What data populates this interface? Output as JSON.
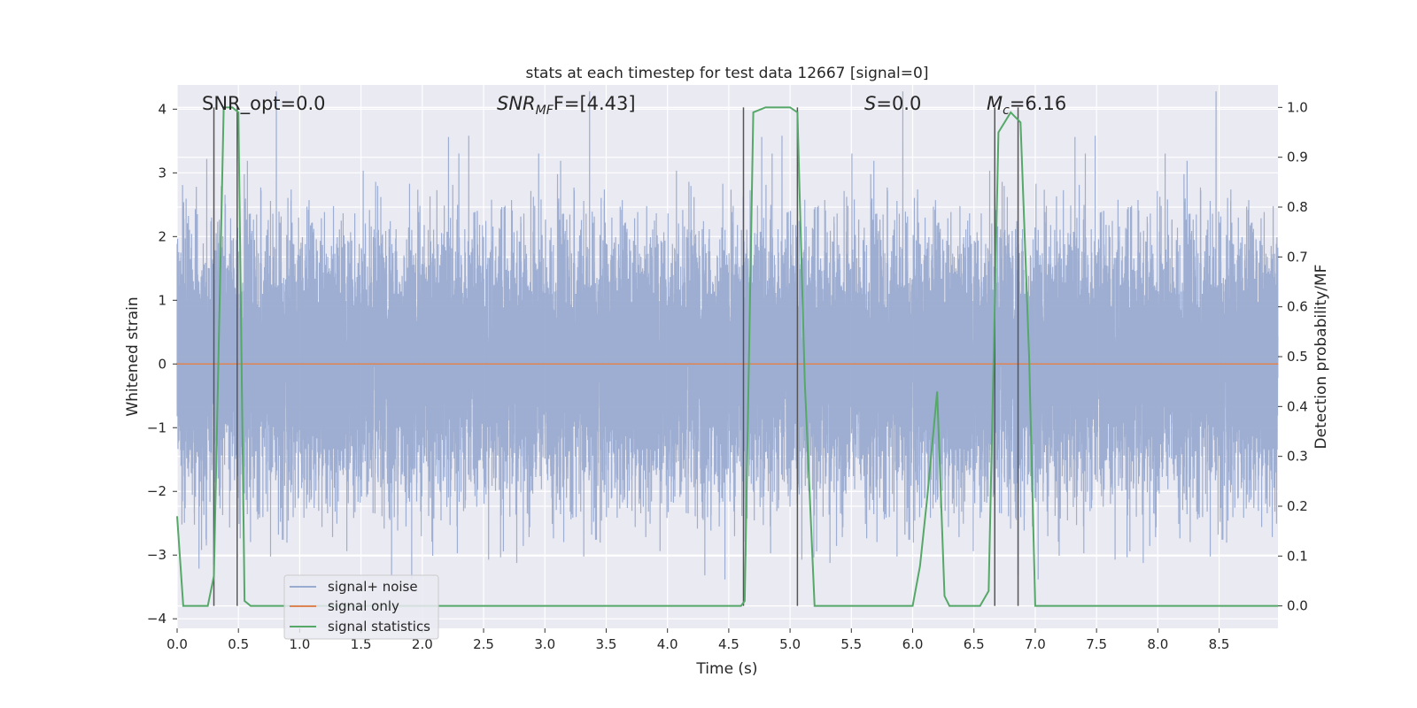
{
  "chart_data": {
    "type": "line",
    "title": "stats at each timestep for test data 12667 [signal=0]",
    "xlabel": "Time (s)",
    "ylabel": "Whitened strain",
    "ylabel_right": "Detection probability/MF",
    "xlim": [
      0.0,
      8.98
    ],
    "ylim": [
      -4.15,
      4.38
    ],
    "ylim_right": [
      -0.045,
      1.045
    ],
    "x_ticks": [
      "0.0",
      "0.5",
      "1.0",
      "1.5",
      "2.0",
      "2.5",
      "3.0",
      "3.5",
      "4.0",
      "4.5",
      "5.0",
      "5.5",
      "6.0",
      "6.5",
      "7.0",
      "7.5",
      "8.0",
      "8.5"
    ],
    "y_ticks": [
      "4",
      "3",
      "2",
      "1",
      "0",
      "−1",
      "−2",
      "−3",
      "−4"
    ],
    "y_ticks_right": [
      "1.0",
      "0.9",
      "0.8",
      "0.7",
      "0.6",
      "0.5",
      "0.4",
      "0.3",
      "0.2",
      "0.1",
      "0.0"
    ],
    "grid": true,
    "legend_position": "lower-left",
    "annotations": [
      {
        "id": "snr-opt",
        "text": "SNR_opt=0.0"
      },
      {
        "id": "snr-mf",
        "text": "SNR",
        "sub": "MF",
        "suffix": "F=[4.43]"
      },
      {
        "id": "s-stat",
        "text": "S",
        "suffix": "=0.0"
      },
      {
        "id": "chirp-mass",
        "text": "M",
        "sub": "c",
        "suffix": "=6.16"
      }
    ],
    "series": [
      {
        "name": "signal+ noise",
        "color": "#9aabd0",
        "description_kind": "noise",
        "sample_rate": 2048,
        "amplitude_sd": 1.0
      },
      {
        "name": "signal only",
        "color": "#dd8452",
        "x": [
          0.0,
          8.98
        ],
        "y": [
          0.0,
          0.0
        ]
      },
      {
        "name": "signal statistics",
        "color": "#55a868",
        "axis": "right",
        "x": [
          0.0,
          0.05,
          0.12,
          0.25,
          0.3,
          0.38,
          0.45,
          0.5,
          0.55,
          0.6,
          1.0,
          2.0,
          3.0,
          4.0,
          4.6,
          4.63,
          4.7,
          4.8,
          5.0,
          5.06,
          5.12,
          5.2,
          5.5,
          6.0,
          6.06,
          6.12,
          6.2,
          6.26,
          6.3,
          6.35,
          6.5,
          6.55,
          6.62,
          6.7,
          6.75,
          6.8,
          6.88,
          6.95,
          7.0,
          8.0,
          8.98
        ],
        "y": [
          0.18,
          0.0,
          0.0,
          0.0,
          0.06,
          1.0,
          1.0,
          0.99,
          0.01,
          0.0,
          0.0,
          0.0,
          0.0,
          0.0,
          0.0,
          0.01,
          0.99,
          1.0,
          1.0,
          0.99,
          0.45,
          0.0,
          0.0,
          0.0,
          0.08,
          0.22,
          0.43,
          0.02,
          0.0,
          0.0,
          0.0,
          0.0,
          0.03,
          0.95,
          0.97,
          0.99,
          0.97,
          0.5,
          0.0,
          0.0,
          0.0
        ]
      }
    ],
    "vlines": [
      0.3,
      0.49,
      4.62,
      5.06,
      6.67,
      6.86
    ],
    "vline_color": "#555555"
  }
}
